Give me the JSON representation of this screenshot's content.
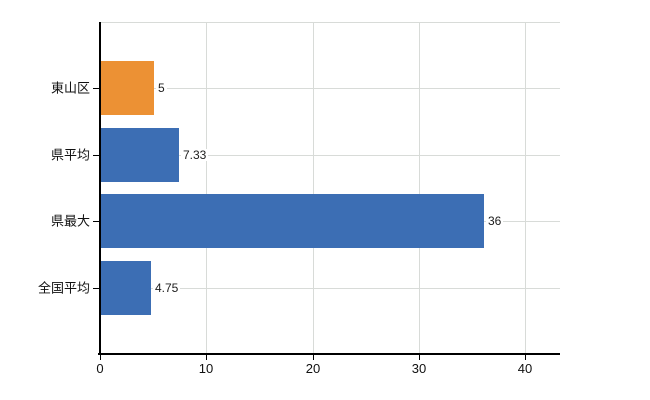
{
  "chart_data": {
    "type": "bar",
    "orientation": "horizontal",
    "title": "",
    "xlabel": "",
    "ylabel": "",
    "categories": [
      "東山区",
      "県平均",
      "県最大",
      "全国平均"
    ],
    "values": [
      5,
      7.33,
      36,
      4.75
    ],
    "value_labels": [
      "5",
      "7.33",
      "36",
      "4.75"
    ],
    "bar_colors": [
      "#EC9134",
      "#3C6EB4",
      "#3C6EB4",
      "#3C6EB4"
    ],
    "x_tick_values": [
      0,
      10,
      20,
      30,
      40
    ],
    "x_tick_labels": [
      "0",
      "10",
      "20",
      "30",
      "40"
    ],
    "xlim": [
      0,
      43.3
    ],
    "grid": true,
    "legend_position": "none"
  },
  "colors": {
    "bar_default": "#3C6EB4",
    "bar_highlight": "#EC9134",
    "grid": "#D8DBD8",
    "axis": "#000000",
    "text": "#111111",
    "background": "#FFFFFF"
  }
}
